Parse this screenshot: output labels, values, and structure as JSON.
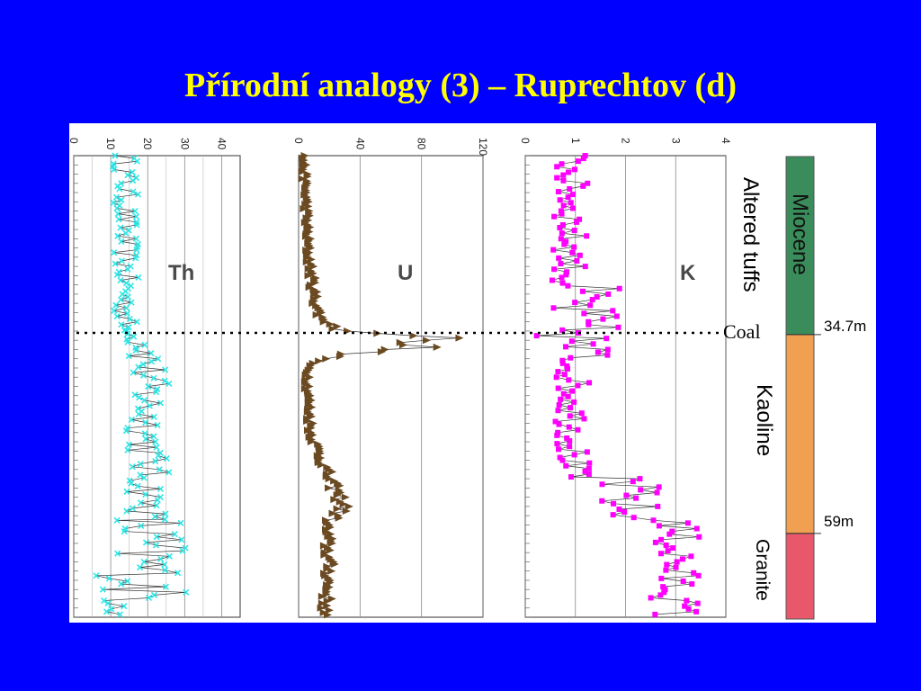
{
  "title": "Přírodní analogy (3) – Ruprechtov (d)",
  "chart_data": [
    {
      "type": "line",
      "element": "Th",
      "x_ticks": [
        "0",
        "10",
        "20",
        "30",
        "40"
      ],
      "xlim": [
        0,
        45
      ],
      "color": "#2ee6e6",
      "marker": "x",
      "segments": [
        {
          "depth": [
            0,
            0.38
          ],
          "base": 14,
          "amp": 3.5
        },
        {
          "depth": [
            0.38,
            0.41
          ],
          "base": 16,
          "amp": 2
        },
        {
          "depth": [
            0.41,
            0.79
          ],
          "base": 20,
          "amp": 6
        },
        {
          "depth": [
            0.79,
            1.0
          ],
          "base": 19,
          "amp": 13
        }
      ]
    },
    {
      "type": "line",
      "element": "U",
      "x_ticks": [
        "0",
        "40",
        "80",
        "120"
      ],
      "xlim": [
        0,
        120
      ],
      "color": "#6b4a22",
      "marker": "triangle",
      "profile": [
        {
          "depth": 0.0,
          "value": 3
        },
        {
          "depth": 0.1,
          "value": 5
        },
        {
          "depth": 0.2,
          "value": 6
        },
        {
          "depth": 0.3,
          "value": 10
        },
        {
          "depth": 0.35,
          "value": 14
        },
        {
          "depth": 0.38,
          "value": 28
        },
        {
          "depth": 0.395,
          "value": 112
        },
        {
          "depth": 0.405,
          "value": 60
        },
        {
          "depth": 0.415,
          "value": 82
        },
        {
          "depth": 0.43,
          "value": 30
        },
        {
          "depth": 0.45,
          "value": 7
        },
        {
          "depth": 0.5,
          "value": 6
        },
        {
          "depth": 0.6,
          "value": 8
        },
        {
          "depth": 0.7,
          "value": 20
        },
        {
          "depth": 0.76,
          "value": 30
        },
        {
          "depth": 0.8,
          "value": 18
        },
        {
          "depth": 0.9,
          "value": 20
        },
        {
          "depth": 1.0,
          "value": 17
        }
      ]
    },
    {
      "type": "line",
      "element": "K",
      "x_ticks": [
        "0",
        "1",
        "2",
        "3",
        "4"
      ],
      "xlim": [
        0,
        4
      ],
      "color": "#ff00ff",
      "marker": "square",
      "segments": [
        {
          "depth": [
            0,
            0.27
          ],
          "base": 0.9,
          "amp": 0.35
        },
        {
          "depth": [
            0.27,
            0.45
          ],
          "base": 1.0,
          "amp": 0.9
        },
        {
          "depth": [
            0.45,
            0.7
          ],
          "base": 0.95,
          "amp": 0.35
        },
        {
          "depth": [
            0.7,
            0.79
          ],
          "base": 2.0,
          "amp": 0.7
        },
        {
          "depth": [
            0.79,
            1.0
          ],
          "base": 3.0,
          "amp": 0.5
        }
      ]
    }
  ],
  "coal_label": "Coal",
  "lithology": [
    {
      "name": "Miocene",
      "color": "#3a8c5a",
      "from": 0.0,
      "to": 0.385
    },
    {
      "name": "Kaoline",
      "color": "#f0a050",
      "from": 0.385,
      "to": 0.815
    },
    {
      "name": "Granite",
      "color": "#e8586a",
      "from": 0.815,
      "to": 1.0
    }
  ],
  "unit_labels": [
    "Altered tuffs",
    "Kaoline",
    "Granite"
  ],
  "depth_markers": [
    {
      "label": "34.7m",
      "depth": 0.385
    },
    {
      "label": "59m",
      "depth": 0.815
    }
  ]
}
